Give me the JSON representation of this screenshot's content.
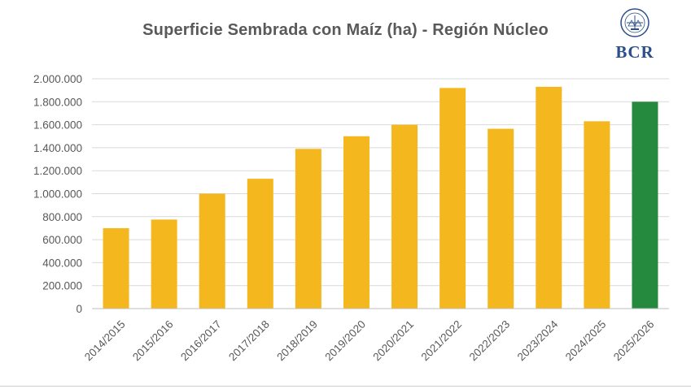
{
  "chart_data": {
    "type": "bar",
    "title": "Superficie Sembrada con Maíz (ha) - Región Núcleo",
    "xlabel": "",
    "ylabel": "",
    "ylim": [
      0,
      2000000
    ],
    "grid": true,
    "categories": [
      "2014/2015",
      "2015/2016",
      "2016/2017",
      "2017/2018",
      "2018/2019",
      "2019/2020",
      "2020/2021",
      "2021/2022",
      "2022/2023",
      "2023/2024",
      "2024/2025",
      "2025/2026"
    ],
    "values": [
      700000,
      775000,
      1000000,
      1130000,
      1390000,
      1500000,
      1600000,
      1920000,
      1565000,
      1930000,
      1630000,
      1800000
    ],
    "y_ticks": [
      0,
      200000,
      400000,
      600000,
      800000,
      1000000,
      1200000,
      1400000,
      1600000,
      1800000,
      2000000
    ],
    "y_tick_labels": [
      "0",
      "200.000",
      "400.000",
      "600.000",
      "800.000",
      "1.000.000",
      "1.200.000",
      "1.400.000",
      "1.600.000",
      "1.800.000",
      "2.000.000"
    ],
    "bar_colors": [
      "#F4B71E",
      "#F4B71E",
      "#F4B71E",
      "#F4B71E",
      "#F4B71E",
      "#F4B71E",
      "#F4B71E",
      "#F4B71E",
      "#F4B71E",
      "#F4B71E",
      "#F4B71E",
      "#268A3E"
    ]
  },
  "logo": {
    "text": "BCR"
  },
  "colors": {
    "title": "#595959",
    "axis_text": "#595959",
    "grid": "#d9d9d9"
  }
}
